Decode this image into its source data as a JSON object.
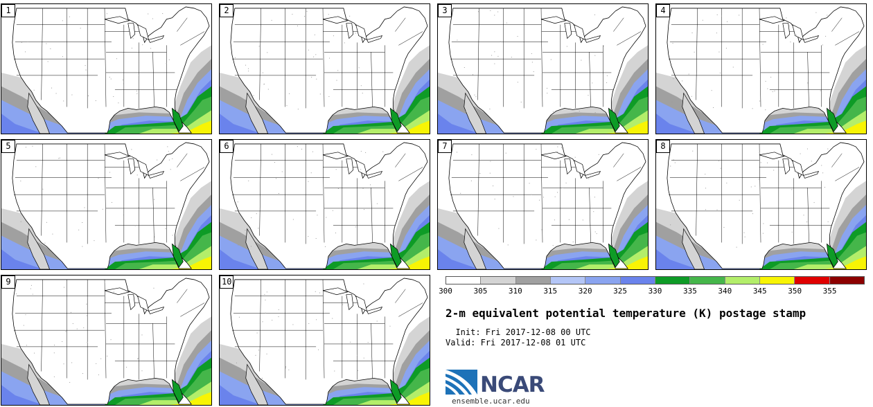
{
  "members": [
    "1",
    "2",
    "3",
    "4",
    "5",
    "6",
    "7",
    "8",
    "9",
    "10"
  ],
  "legend": {
    "colors": [
      "#ffffff",
      "#d4d4d4",
      "#a0a0a0",
      "#b4c6f7",
      "#8aa4f0",
      "#6a83ec",
      "#0e9b26",
      "#45b64a",
      "#b3ee6a",
      "#f8f404",
      "#e00000",
      "#8c0000"
    ],
    "ticks": [
      "300",
      "305",
      "310",
      "315",
      "320",
      "325",
      "330",
      "335",
      "340",
      "345",
      "350",
      "355"
    ]
  },
  "title": "2-m equivalent potential temperature (K) postage stamp",
  "init_label": "  Init: Fri 2017-12-08 00 UTC",
  "valid_label": "Valid: Fri 2017-12-08 01 UTC",
  "logo": {
    "text": "NCAR",
    "url": "ensemble.ucar.edu"
  }
}
